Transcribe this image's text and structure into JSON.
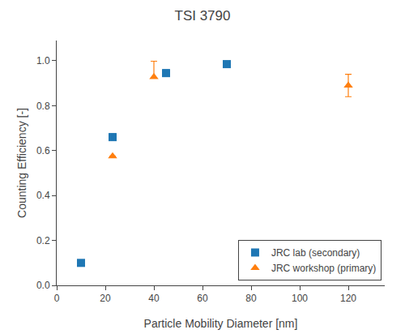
{
  "chart_data": {
    "type": "scatter",
    "title": "TSI 3790",
    "xlabel": "Particle Mobility Diameter [nm]",
    "ylabel": "Counting Efficiency [-]",
    "xlim": [
      0,
      135
    ],
    "ylim": [
      0.0,
      1.09
    ],
    "xticks": [
      0,
      20,
      40,
      60,
      80,
      100,
      120
    ],
    "yticks": [
      {
        "value": 0.0,
        "label": "0.0"
      },
      0.2,
      0.4,
      0.6,
      0.8,
      {
        "value": 1.0,
        "label": "1.0"
      }
    ],
    "grid": false,
    "legend": "lower right",
    "series": [
      {
        "name": "JRC lab (secondary)",
        "marker": "square",
        "x": [
          10,
          23,
          45,
          70
        ],
        "values": [
          0.1,
          0.66,
          0.945,
          0.985
        ],
        "error_upper": [
          0.0,
          0.015,
          0.015,
          0.0
        ],
        "error_lower": [
          0.0,
          0.015,
          0.015,
          0.0
        ]
      },
      {
        "name": "JRC workshop (primary)",
        "marker": "triangle-up",
        "x": [
          23,
          40,
          120
        ],
        "values": [
          0.575,
          0.928,
          0.89
        ],
        "error_upper": [
          0.0,
          0.07,
          0.05
        ],
        "error_lower": [
          0.0,
          0.005,
          0.05
        ]
      }
    ]
  }
}
